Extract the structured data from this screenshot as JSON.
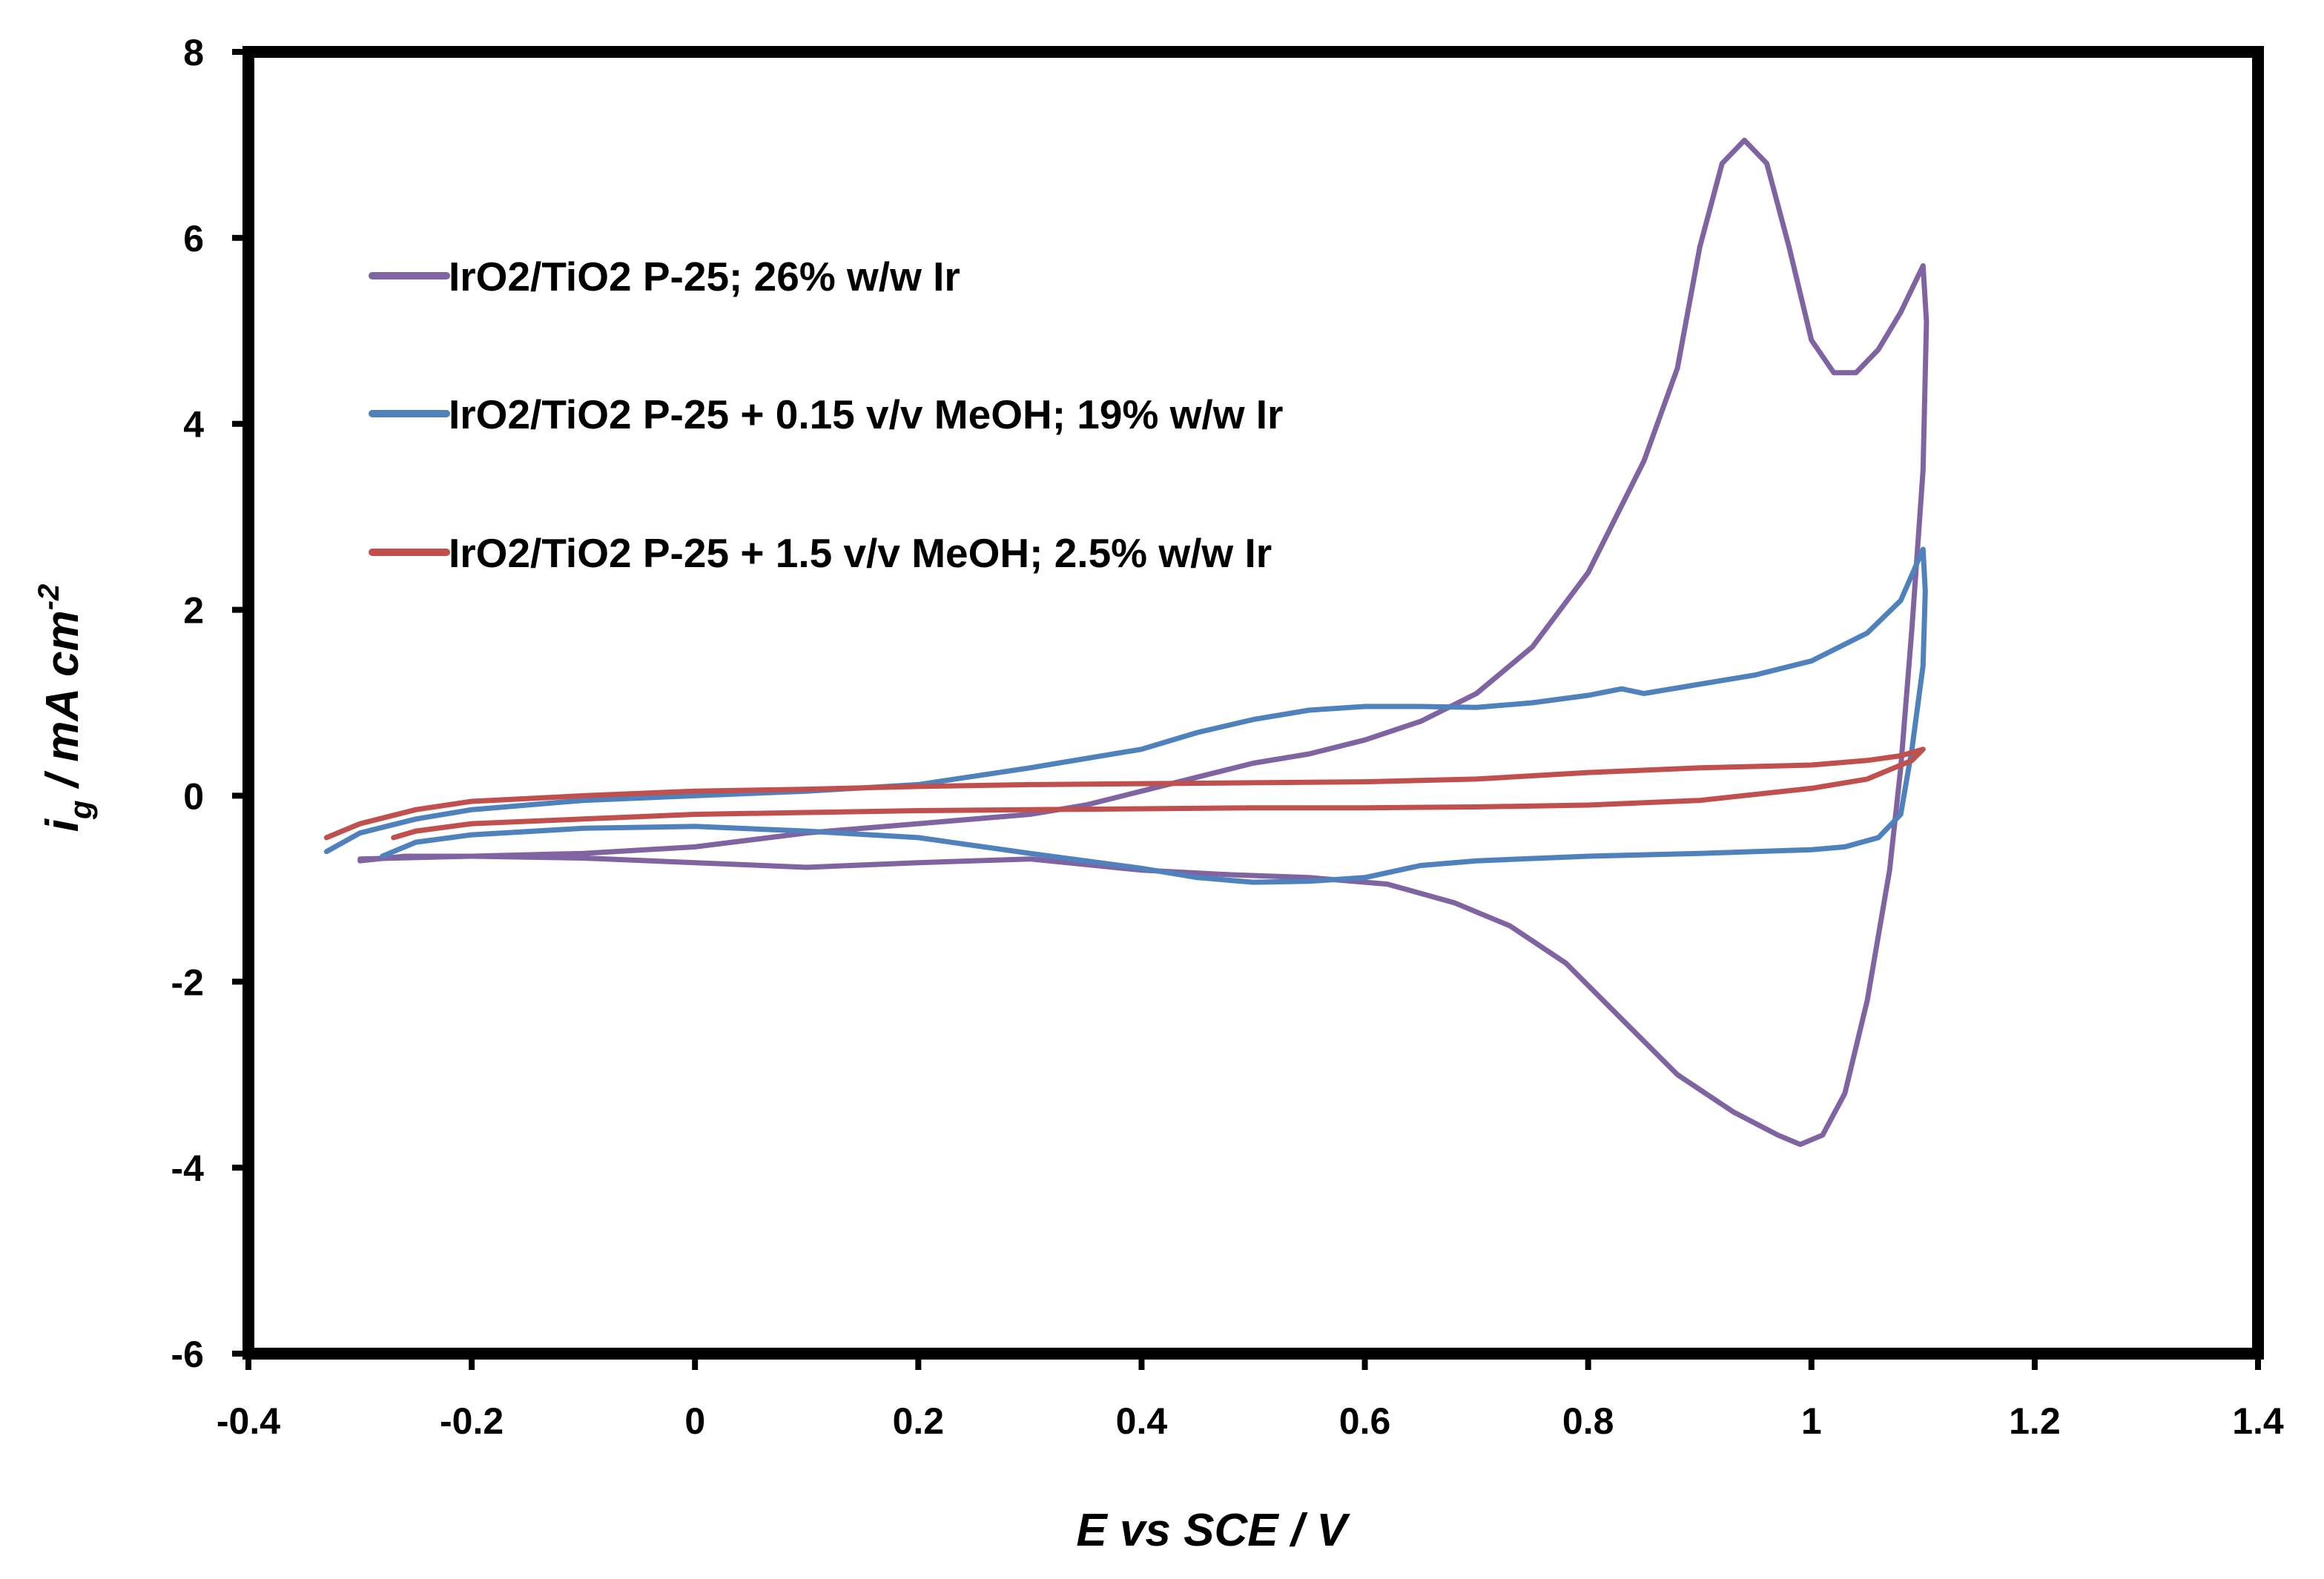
{
  "chart_data": {
    "type": "line",
    "title": "",
    "xlabel": "E vs SCE / V",
    "ylabel_main": "i",
    "ylabel_sub": "g",
    "ylabel_rest": " / mA cm",
    "ylabel_sup": "-2",
    "xlim": [
      -0.4,
      1.4
    ],
    "ylim": [
      -6,
      8
    ],
    "xticks": [
      -0.4,
      -0.2,
      0,
      0.2,
      0.4,
      0.6,
      0.8,
      1,
      1.2,
      1.4
    ],
    "xtick_labels": [
      "-0.4",
      "-0.2",
      "0",
      "0.2",
      "0.4",
      "0.6",
      "0.8",
      "1",
      "1.2",
      "1.4"
    ],
    "yticks": [
      -6,
      -4,
      -2,
      0,
      2,
      4,
      6,
      8
    ],
    "ytick_labels": [
      "-6",
      "-4",
      "-2",
      "0",
      "2",
      "4",
      "6",
      "8"
    ],
    "grid": false,
    "legend_position": "upper-left",
    "series": [
      {
        "name": "IrO2/TiO2 P-25; 26% w/w Ir",
        "color": "#8064a2",
        "points": [
          [
            -0.3,
            -0.68
          ],
          [
            -0.2,
            -0.65
          ],
          [
            -0.1,
            -0.62
          ],
          [
            0.0,
            -0.55
          ],
          [
            0.1,
            -0.4
          ],
          [
            0.2,
            -0.3
          ],
          [
            0.3,
            -0.2
          ],
          [
            0.35,
            -0.1
          ],
          [
            0.4,
            0.05
          ],
          [
            0.45,
            0.2
          ],
          [
            0.5,
            0.35
          ],
          [
            0.55,
            0.45
          ],
          [
            0.6,
            0.6
          ],
          [
            0.65,
            0.8
          ],
          [
            0.7,
            1.1
          ],
          [
            0.75,
            1.6
          ],
          [
            0.8,
            2.4
          ],
          [
            0.85,
            3.6
          ],
          [
            0.88,
            4.6
          ],
          [
            0.9,
            5.9
          ],
          [
            0.92,
            6.8
          ],
          [
            0.94,
            7.05
          ],
          [
            0.96,
            6.8
          ],
          [
            0.98,
            5.9
          ],
          [
            1.0,
            4.9
          ],
          [
            1.02,
            4.55
          ],
          [
            1.04,
            4.55
          ],
          [
            1.06,
            4.8
          ],
          [
            1.08,
            5.2
          ],
          [
            1.1,
            5.7
          ],
          [
            1.103,
            5.1
          ],
          [
            1.1,
            3.5
          ],
          [
            1.09,
            1.8
          ],
          [
            1.08,
            0.3
          ],
          [
            1.07,
            -0.8
          ],
          [
            1.05,
            -2.2
          ],
          [
            1.03,
            -3.2
          ],
          [
            1.01,
            -3.65
          ],
          [
            0.99,
            -3.75
          ],
          [
            0.97,
            -3.65
          ],
          [
            0.93,
            -3.4
          ],
          [
            0.88,
            -3.0
          ],
          [
            0.83,
            -2.4
          ],
          [
            0.78,
            -1.8
          ],
          [
            0.73,
            -1.4
          ],
          [
            0.68,
            -1.15
          ],
          [
            0.62,
            -0.95
          ],
          [
            0.55,
            -0.88
          ],
          [
            0.48,
            -0.85
          ],
          [
            0.4,
            -0.8
          ],
          [
            0.3,
            -0.68
          ],
          [
            0.2,
            -0.72
          ],
          [
            0.1,
            -0.77
          ],
          [
            0.0,
            -0.72
          ],
          [
            -0.1,
            -0.67
          ],
          [
            -0.2,
            -0.65
          ],
          [
            -0.26,
            -0.65
          ],
          [
            -0.3,
            -0.7
          ]
        ]
      },
      {
        "name": "IrO2/TiO2 P-25 + 0.15 v/v MeOH; 19% w/w Ir",
        "color": "#4f81bd",
        "points": [
          [
            -0.33,
            -0.6
          ],
          [
            -0.3,
            -0.4
          ],
          [
            -0.25,
            -0.25
          ],
          [
            -0.2,
            -0.15
          ],
          [
            -0.1,
            -0.05
          ],
          [
            0.0,
            0.0
          ],
          [
            0.1,
            0.05
          ],
          [
            0.2,
            0.12
          ],
          [
            0.3,
            0.3
          ],
          [
            0.4,
            0.5
          ],
          [
            0.45,
            0.68
          ],
          [
            0.5,
            0.82
          ],
          [
            0.55,
            0.92
          ],
          [
            0.6,
            0.96
          ],
          [
            0.65,
            0.96
          ],
          [
            0.7,
            0.95
          ],
          [
            0.75,
            1.0
          ],
          [
            0.8,
            1.08
          ],
          [
            0.83,
            1.15
          ],
          [
            0.85,
            1.1
          ],
          [
            0.9,
            1.2
          ],
          [
            0.95,
            1.3
          ],
          [
            1.0,
            1.45
          ],
          [
            1.05,
            1.75
          ],
          [
            1.08,
            2.1
          ],
          [
            1.1,
            2.65
          ],
          [
            1.102,
            2.2
          ],
          [
            1.1,
            1.4
          ],
          [
            1.09,
            0.5
          ],
          [
            1.08,
            -0.2
          ],
          [
            1.06,
            -0.45
          ],
          [
            1.03,
            -0.55
          ],
          [
            1.0,
            -0.58
          ],
          [
            0.9,
            -0.62
          ],
          [
            0.8,
            -0.65
          ],
          [
            0.7,
            -0.7
          ],
          [
            0.65,
            -0.75
          ],
          [
            0.6,
            -0.88
          ],
          [
            0.55,
            -0.92
          ],
          [
            0.5,
            -0.93
          ],
          [
            0.45,
            -0.88
          ],
          [
            0.4,
            -0.78
          ],
          [
            0.3,
            -0.62
          ],
          [
            0.2,
            -0.45
          ],
          [
            0.1,
            -0.38
          ],
          [
            0.0,
            -0.33
          ],
          [
            -0.1,
            -0.35
          ],
          [
            -0.2,
            -0.42
          ],
          [
            -0.25,
            -0.5
          ],
          [
            -0.28,
            -0.65
          ]
        ]
      },
      {
        "name": "IrO2/TiO2 P-25 + 1.5 v/v MeOH; 2.5% w/w Ir",
        "color": "#c0504d",
        "points": [
          [
            -0.33,
            -0.45
          ],
          [
            -0.3,
            -0.3
          ],
          [
            -0.25,
            -0.15
          ],
          [
            -0.2,
            -0.06
          ],
          [
            -0.1,
            0.0
          ],
          [
            0.0,
            0.05
          ],
          [
            0.1,
            0.07
          ],
          [
            0.2,
            0.1
          ],
          [
            0.3,
            0.12
          ],
          [
            0.4,
            0.13
          ],
          [
            0.5,
            0.14
          ],
          [
            0.6,
            0.15
          ],
          [
            0.7,
            0.18
          ],
          [
            0.8,
            0.25
          ],
          [
            0.9,
            0.3
          ],
          [
            1.0,
            0.33
          ],
          [
            1.05,
            0.38
          ],
          [
            1.08,
            0.43
          ],
          [
            1.1,
            0.5
          ],
          [
            1.09,
            0.38
          ],
          [
            1.05,
            0.18
          ],
          [
            1.0,
            0.08
          ],
          [
            0.9,
            -0.05
          ],
          [
            0.8,
            -0.1
          ],
          [
            0.7,
            -0.12
          ],
          [
            0.6,
            -0.13
          ],
          [
            0.5,
            -0.13
          ],
          [
            0.4,
            -0.14
          ],
          [
            0.3,
            -0.15
          ],
          [
            0.2,
            -0.16
          ],
          [
            0.1,
            -0.18
          ],
          [
            0.0,
            -0.2
          ],
          [
            -0.1,
            -0.25
          ],
          [
            -0.2,
            -0.3
          ],
          [
            -0.25,
            -0.38
          ],
          [
            -0.27,
            -0.45
          ]
        ]
      }
    ]
  }
}
